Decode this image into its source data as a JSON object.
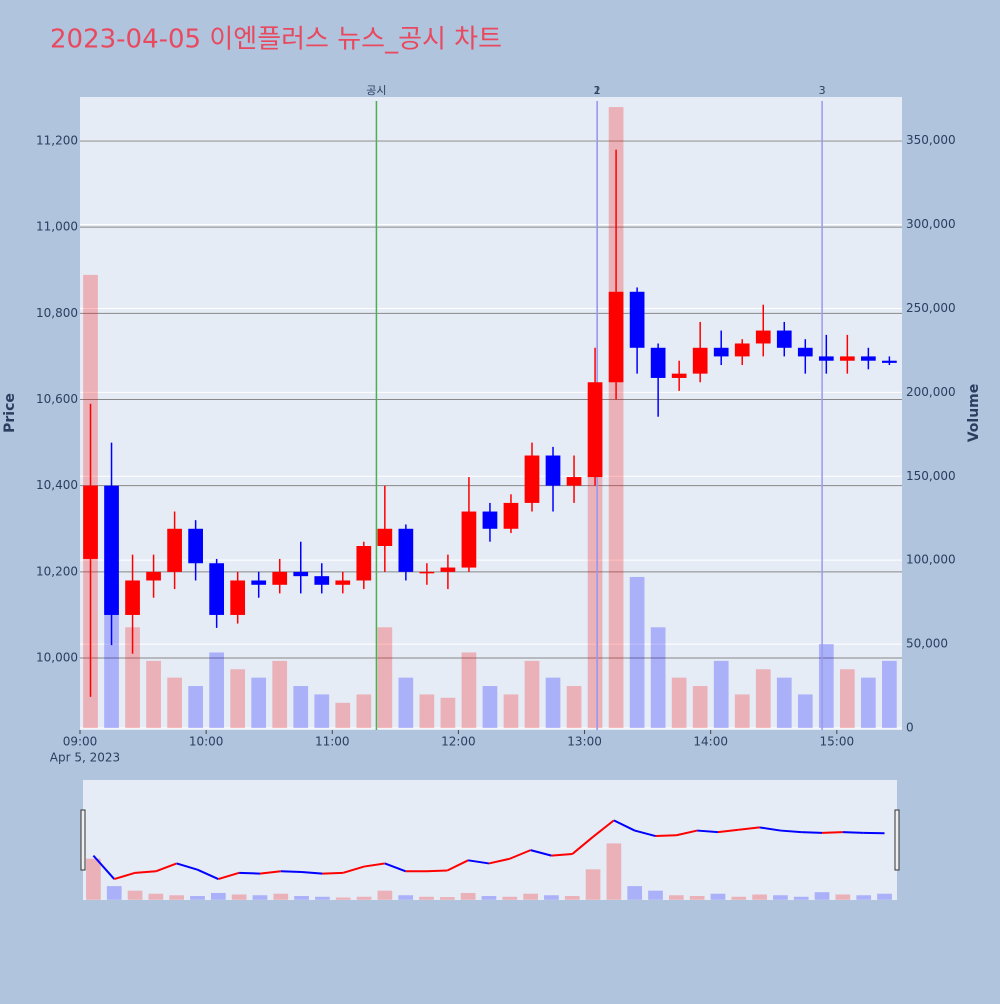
{
  "chart_data": {
    "type": "candlestick",
    "title": "2023-04-05 이엔플러스 뉴스_공시 차트",
    "x_date_label": "Apr 5, 2023",
    "ylabel": "Price",
    "y2label": "Volume",
    "x": [
      "2023-04-05 09:00",
      "2023-04-05 09:10",
      "2023-04-05 09:20",
      "2023-04-05 09:30",
      "2023-04-05 09:40",
      "2023-04-05 09:50",
      "2023-04-05 10:00",
      "2023-04-05 10:10",
      "2023-04-05 10:20",
      "2023-04-05 10:30",
      "2023-04-05 10:40",
      "2023-04-05 10:50",
      "2023-04-05 11:00",
      "2023-04-05 11:10",
      "2023-04-05 11:20",
      "2023-04-05 11:30",
      "2023-04-05 11:40",
      "2023-04-05 11:50",
      "2023-04-05 12:00",
      "2023-04-05 12:10",
      "2023-04-05 12:20",
      "2023-04-05 12:30",
      "2023-04-05 12:40",
      "2023-04-05 12:50",
      "2023-04-05 13:00",
      "2023-04-05 13:10",
      "2023-04-05 13:20",
      "2023-04-05 13:30",
      "2023-04-05 13:40",
      "2023-04-05 13:50",
      "2023-04-05 14:00",
      "2023-04-05 14:10",
      "2023-04-05 14:20",
      "2023-04-05 14:30",
      "2023-04-05 14:40",
      "2023-04-05 14:50",
      "2023-04-05 15:00",
      "2023-04-05 15:10",
      "2023-04-05 15:20"
    ],
    "open": [
      10230,
      10400,
      10100,
      10180,
      10200,
      10300,
      10220,
      10100,
      10180,
      10170,
      10200,
      10190,
      10170,
      10180,
      10260,
      10300,
      10200,
      10200,
      10210,
      10340,
      10300,
      10360,
      10470,
      10400,
      10420,
      10640,
      10850,
      10720,
      10650,
      10660,
      10720,
      10700,
      10730,
      10760,
      10720,
      10700,
      10690,
      10700,
      10690
    ],
    "high": [
      10590,
      10500,
      10240,
      10240,
      10340,
      10320,
      10230,
      10200,
      10200,
      10230,
      10270,
      10220,
      10200,
      10270,
      10400,
      10310,
      10220,
      10240,
      10420,
      10360,
      10380,
      10500,
      10490,
      10470,
      10720,
      11180,
      10860,
      10730,
      10690,
      10780,
      10760,
      10740,
      10820,
      10780,
      10740,
      10750,
      10750,
      10720,
      10700
    ],
    "low": [
      9910,
      10030,
      10010,
      10140,
      10160,
      10180,
      10070,
      10080,
      10140,
      10150,
      10150,
      10150,
      10150,
      10160,
      10200,
      10180,
      10170,
      10160,
      10200,
      10270,
      10290,
      10340,
      10340,
      10360,
      10400,
      10600,
      10660,
      10560,
      10620,
      10640,
      10680,
      10680,
      10700,
      10700,
      10660,
      10660,
      10660,
      10670,
      10680
    ],
    "close": [
      10400,
      10100,
      10180,
      10200,
      10300,
      10220,
      10100,
      10180,
      10170,
      10200,
      10190,
      10170,
      10180,
      10260,
      10300,
      10200,
      10200,
      10210,
      10340,
      10300,
      10360,
      10470,
      10400,
      10420,
      10640,
      10850,
      10720,
      10650,
      10660,
      10720,
      10700,
      10730,
      10760,
      10720,
      10700,
      10690,
      10700,
      10690,
      10685
    ],
    "volume": [
      270000,
      90000,
      60000,
      40000,
      30000,
      25000,
      45000,
      35000,
      30000,
      40000,
      25000,
      20000,
      15000,
      20000,
      60000,
      30000,
      20000,
      18000,
      45000,
      25000,
      20000,
      40000,
      30000,
      25000,
      200000,
      370000,
      90000,
      60000,
      30000,
      25000,
      40000,
      20000,
      35000,
      30000,
      20000,
      50000,
      35000,
      30000,
      40000
    ],
    "up_color": "#ff0000",
    "down_color": "#0000ff",
    "xlim": [
      "2023-04-05 09:00",
      "2023-04-05 15:31"
    ],
    "xticks": [
      {
        "value": "2023-04-05 09:00",
        "label": "09:00"
      },
      {
        "value": "2023-04-05 10:00",
        "label": "10:00"
      },
      {
        "value": "2023-04-05 11:00",
        "label": "11:00"
      },
      {
        "value": "2023-04-05 12:00",
        "label": "12:00"
      },
      {
        "value": "2023-04-05 13:00",
        "label": "13:00"
      },
      {
        "value": "2023-04-05 14:00",
        "label": "14:00"
      },
      {
        "value": "2023-04-05 15:00",
        "label": "15:00"
      }
    ],
    "ylim": [
      9833,
      11302
    ],
    "yticks": [
      {
        "value": 10000,
        "label": "10,000"
      },
      {
        "value": 10200,
        "label": "10,200"
      },
      {
        "value": 10400,
        "label": "10,400"
      },
      {
        "value": 10600,
        "label": "10,600"
      },
      {
        "value": 10800,
        "label": "10,800"
      },
      {
        "value": 11000,
        "label": "11,000"
      },
      {
        "value": 11200,
        "label": "11,200"
      }
    ],
    "y2lim": [
      -1200,
      376000
    ],
    "y2ticks": [
      0,
      {
        "value": 50000,
        "label": "50,000"
      },
      {
        "value": 100000,
        "label": "100,000"
      },
      {
        "value": 150000,
        "label": "150,000"
      },
      {
        "value": 200000,
        "label": "200,000"
      },
      {
        "value": 250000,
        "label": "250,000"
      },
      {
        "value": 300000,
        "label": "300,000"
      },
      {
        "value": 350000,
        "label": "350,000"
      }
    ],
    "annotations": [
      {
        "x": "2023-04-05 11:21",
        "label": "공시",
        "color": "#4caf50"
      },
      {
        "x": "2023-04-05 13:06",
        "label": "1",
        "color": "#9999ee"
      },
      {
        "x": "2023-04-05 13:06",
        "label": "2",
        "color": "#9999ee"
      },
      {
        "x": "2023-04-05 14:53",
        "label": "3",
        "color": "#9999ee"
      }
    ],
    "grid": true,
    "rangeslider": true
  }
}
